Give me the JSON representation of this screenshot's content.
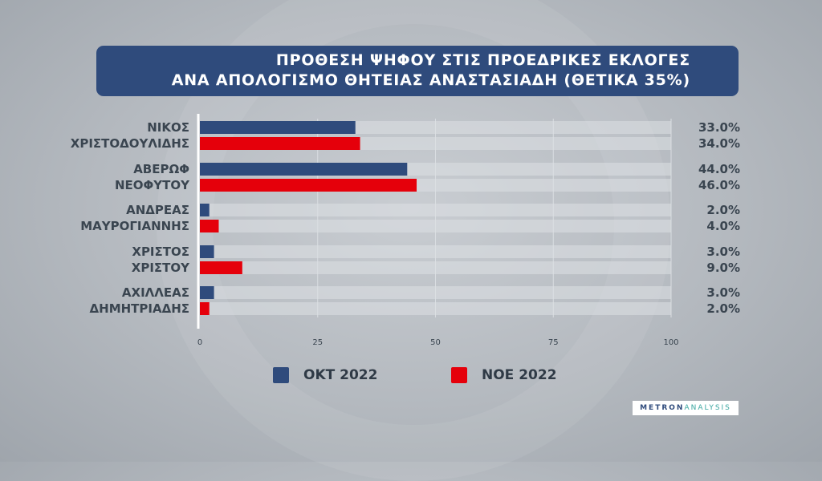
{
  "header": {
    "title_line1": "ΠΡΟΘΕΣΗ ΨΗΦΟΥ ΣΤΙΣ ΠΡΟΕΔΡΙΚΕΣ ΕΚΛΟΓΕΣ",
    "title_line2": "ΑΝΑ ΑΠΟΛΟΓΙΣΜΟ ΘΗΤΕΙΑΣ ΑΝΑΣΤΑΣΙΑΔΗ (ΘΕΤΙΚΑ 35%)"
  },
  "logo": {
    "part1": "METRON",
    "part2": "ANALYSIS"
  },
  "chart_data": {
    "type": "bar",
    "orientation": "horizontal",
    "title": "ΠΡΟΘΕΣΗ ΨΗΦΟΥ ΣΤΙΣ ΠΡΟΕΔΡΙΚΕΣ ΕΚΛΟΓΕΣ ΑΝΑ ΑΠΟΛΟΓΙΣΜΟ ΘΗΤΕΙΑΣ ΑΝΑΣΤΑΣΙΑΔΗ (ΘΕΤΙΚΑ 35%)",
    "categories": [
      [
        "ΝΙΚΟΣ",
        "ΧΡΙΣΤΟΔΟΥΛΙΔΗΣ"
      ],
      [
        "ΑΒΕΡΩΦ",
        "ΝΕΟΦΥΤΟΥ"
      ],
      [
        "ΑΝΔΡΕΑΣ",
        "ΜΑΥΡΟΓΙΑΝΝΗΣ"
      ],
      [
        "ΧΡΙΣΤΟΣ",
        "ΧΡΙΣΤΟΥ"
      ],
      [
        "ΑΧΙΛΛΕΑΣ",
        "ΔΗΜΗΤΡΙΑΔΗΣ"
      ]
    ],
    "series": [
      {
        "name": "ΟΚΤ 2022",
        "color": "#2f4b7c",
        "values": [
          33,
          44,
          2,
          3,
          3
        ],
        "labels": [
          "33.0%",
          "44.0%",
          "2.0%",
          "3.0%",
          "3.0%"
        ]
      },
      {
        "name": "ΝΟΕ 2022",
        "color": "#e5000b",
        "values": [
          34,
          46,
          4,
          9,
          2
        ],
        "labels": [
          "34.0%",
          "46.0%",
          "4.0%",
          "9.0%",
          "2.0%"
        ]
      }
    ],
    "xlim": [
      0,
      100
    ],
    "xticks": [
      0,
      25,
      50,
      75,
      100
    ],
    "grid": true,
    "legend": "bottom"
  }
}
